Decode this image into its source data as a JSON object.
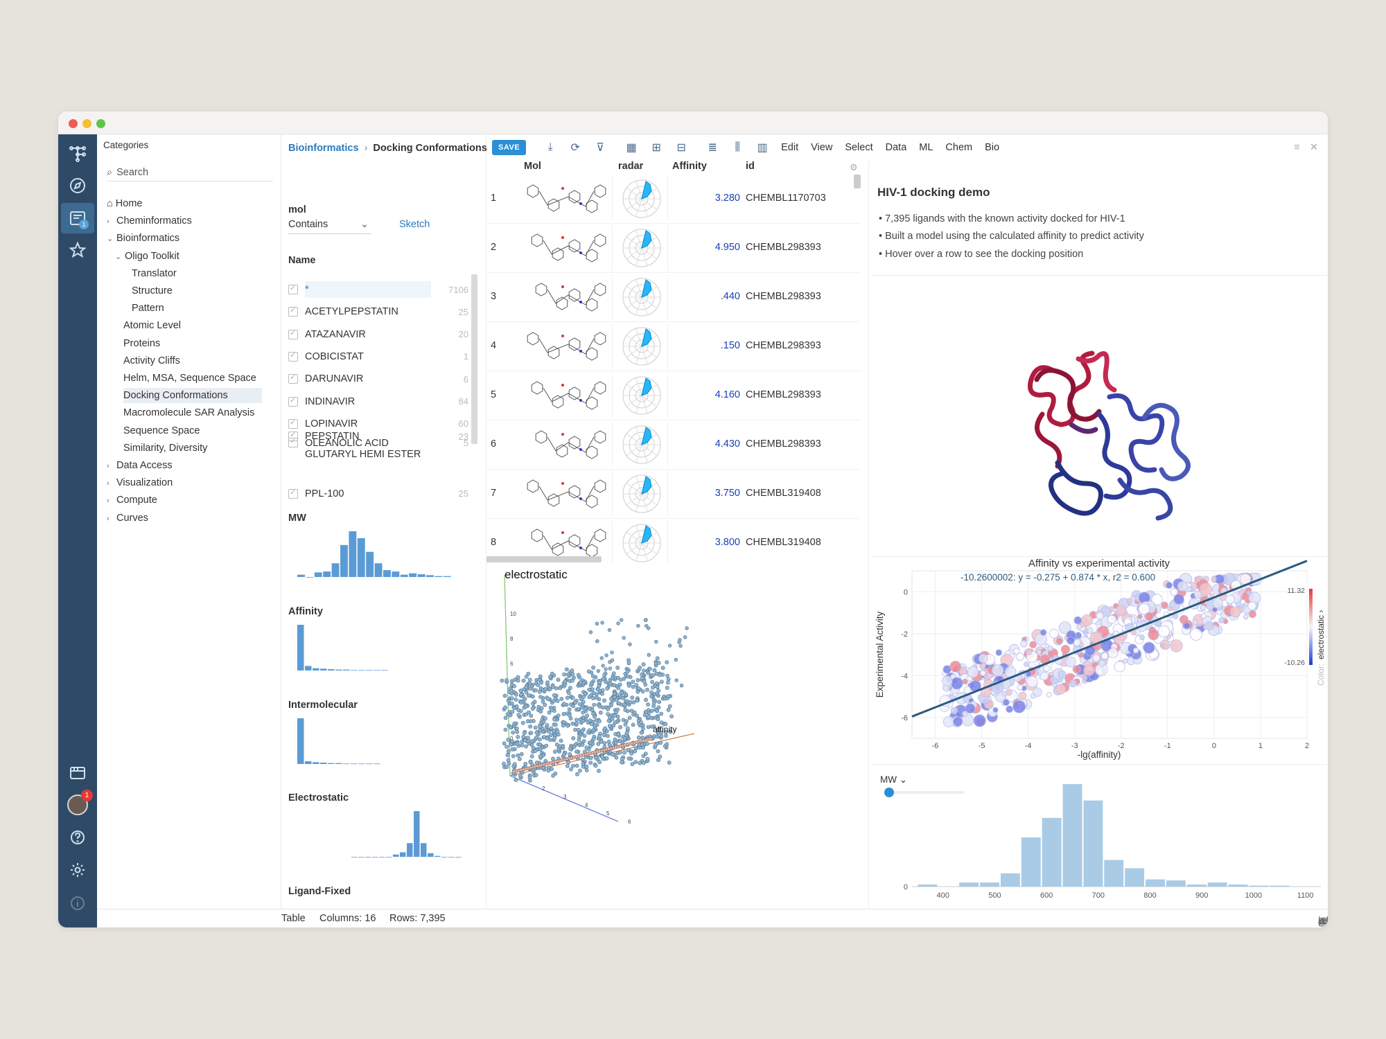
{
  "window": {
    "traffic": [
      "#ee5c54",
      "#f6be35",
      "#5ec544"
    ]
  },
  "rail": {
    "icons": [
      "datagrok-logo-icon",
      "compass-icon",
      "browse-icon",
      "star-icon",
      "projects-icon",
      "avatar",
      "help-icon",
      "settings-icon",
      "info-icon"
    ],
    "browse_badge": "1",
    "avatar_badge": "1"
  },
  "browse": {
    "header": "Categories",
    "search_placeholder": "Search",
    "items": [
      {
        "label": "Home",
        "icon": "home-icon"
      },
      {
        "label": "Cheminformatics",
        "chev": "›"
      },
      {
        "label": "Bioinformatics",
        "chev": "⌄"
      },
      {
        "label": "Oligo Toolkit",
        "chev": "⌄"
      },
      {
        "label": "Translator"
      },
      {
        "label": "Structure"
      },
      {
        "label": "Pattern"
      },
      {
        "label": "Atomic Level"
      },
      {
        "label": "Proteins"
      },
      {
        "label": "Activity Cliffs"
      },
      {
        "label": "Helm, MSA, Sequence Space"
      },
      {
        "label": "Docking Conformations"
      },
      {
        "label": "Macromolecule SAR Analysis"
      },
      {
        "label": "Sequence Space"
      },
      {
        "label": "Similarity, Diversity"
      },
      {
        "label": "Data Access",
        "chev": "›"
      },
      {
        "label": "Visualization",
        "chev": "›"
      },
      {
        "label": "Compute",
        "chev": "›"
      },
      {
        "label": "Curves",
        "chev": "›"
      }
    ]
  },
  "breadcrumb": {
    "parent": "Bioinformatics",
    "sep": "›",
    "current": "Docking Conformations"
  },
  "toolbar": {
    "save": "SAVE",
    "menus": [
      "Edit",
      "View",
      "Select",
      "Data",
      "ML",
      "Chem",
      "Bio"
    ]
  },
  "filters": {
    "mol_label": "mol",
    "mol_mode": "Contains",
    "sketch": "Sketch",
    "name_label": "Name",
    "names": [
      {
        "label": "*",
        "count": "7106"
      },
      {
        "label": "ACETYLPEPSTATIN",
        "count": "25"
      },
      {
        "label": "ATAZANAVIR",
        "count": "20"
      },
      {
        "label": "COBICISTAT",
        "count": "1"
      },
      {
        "label": "DARUNAVIR",
        "count": "6"
      },
      {
        "label": "INDINAVIR",
        "count": "84"
      },
      {
        "label": "LOPINAVIR",
        "count": "60"
      },
      {
        "label": "OLEANOLIC ACID GLUTARYL HEMI ESTER",
        "count": "5"
      },
      {
        "label": "PEPSTATIN",
        "count": "23"
      },
      {
        "label": "PPL-100",
        "count": "25"
      }
    ],
    "hist_titles": [
      "MW",
      "Affinity",
      "Intermolecular",
      "Electrostatic",
      "Ligand-Fixed"
    ]
  },
  "grid": {
    "columns": [
      "Mol",
      "radar",
      "Affinity",
      "id"
    ],
    "rows": [
      {
        "n": "1",
        "affinity": "3.280",
        "id": "CHEMBL1170703"
      },
      {
        "n": "2",
        "affinity": "4.950",
        "id": "CHEMBL298393"
      },
      {
        "n": "3",
        "affinity": ".440",
        "id": "CHEMBL298393"
      },
      {
        "n": "4",
        "affinity": ".150",
        "id": "CHEMBL298393"
      },
      {
        "n": "5",
        "affinity": "4.160",
        "id": "CHEMBL298393"
      },
      {
        "n": "6",
        "affinity": "4.430",
        "id": "CHEMBL298393"
      },
      {
        "n": "7",
        "affinity": "3.750",
        "id": "CHEMBL319408"
      },
      {
        "n": "8",
        "affinity": "3.800",
        "id": "CHEMBL319408"
      }
    ]
  },
  "info": {
    "title": "HIV-1 docking demo",
    "bullets": [
      "7,395 ligands with the known activity docked for HIV-1",
      "Built a model using the calculated affinity to predict activity",
      "Hover over a row to see the docking position"
    ]
  },
  "scatter3d": {
    "title": "electrostatic",
    "axis_label": "affinity",
    "y_ticks": [
      "10",
      "8",
      "6",
      "4",
      "2",
      "0"
    ],
    "x_ticks": [
      "2",
      "3",
      "4",
      "5",
      "6"
    ]
  },
  "chart_data": [
    {
      "type": "scatter",
      "title": "Affinity vs experimental activity",
      "xlabel": "-lg(affinity)",
      "ylabel": "Experimental Activity",
      "regression_label": "-10.2600002:  y = -0.275  + 0.874 * x,    r2 = 0.600",
      "x_ticks": [
        "-6",
        "-5",
        "-4",
        "-3",
        "-2",
        "-1",
        "0",
        "1",
        "2"
      ],
      "y_ticks": [
        "0",
        "-2",
        "-4",
        "-6"
      ],
      "xlim": [
        -6.5,
        2
      ],
      "ylim": [
        -7,
        1
      ],
      "color_column": "electrostatic",
      "color_max": "11.32",
      "color_min": "-10.26",
      "color_prefix": "Color:",
      "regression": {
        "intercept": -0.275,
        "slope": 0.874
      }
    },
    {
      "type": "bar",
      "title": "MW",
      "x_ticks": [
        "400",
        "500",
        "600",
        "700",
        "800",
        "900",
        "1000",
        "1100"
      ],
      "y_ticks": [
        "0"
      ],
      "bins_start": 350,
      "bin_width": 40,
      "values": [
        2,
        0,
        4,
        4,
        13,
        48,
        67,
        100,
        84,
        26,
        18,
        7,
        6,
        2,
        4,
        2,
        1,
        1
      ]
    }
  ],
  "statusbar": {
    "table": "Table",
    "columns": "Columns: 16",
    "rows": "Rows: 7,395"
  }
}
